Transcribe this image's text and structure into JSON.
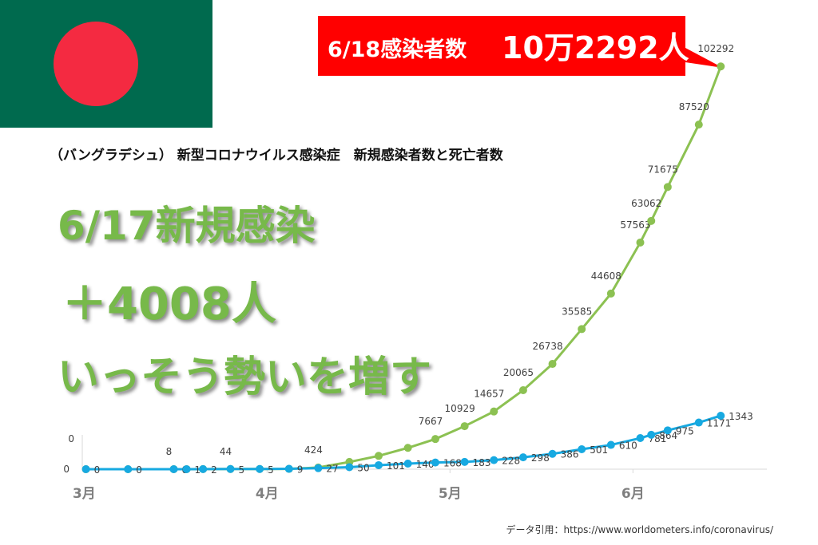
{
  "chart_data": {
    "type": "line",
    "title": "（バングラデシュ） 新型コロナウイルス感染症　新規感染者数と死亡者数",
    "banner": [
      "6/18感染者数",
      "10万2292人"
    ],
    "headline": [
      "6/17新規感染",
      "＋4008人",
      "いっそう勢いを増す"
    ],
    "source": "データ引用：https://www.worldometers.info/coronavirus/",
    "x": [
      3.01,
      3.24,
      3.49,
      3.56,
      3.65,
      3.8,
      3.96,
      4.12,
      4.28,
      4.45,
      4.61,
      4.77,
      4.92,
      5.08,
      5.24,
      5.4,
      5.56,
      5.72,
      5.88,
      6.04,
      6.1,
      6.19,
      6.36,
      6.48
    ],
    "xlim": [
      2.99,
      6.85
    ],
    "xticks": [
      {
        "value": 3,
        "label": "3月"
      },
      {
        "value": 4,
        "label": "4月"
      },
      {
        "value": 5,
        "label": "5月"
      },
      {
        "value": 6,
        "label": "6月"
      }
    ],
    "ylim": [
      0,
      107000
    ],
    "yticks": [
      0
    ],
    "y2lim": [
      0,
      10580
    ],
    "y2ticks": [
      0
    ],
    "series": [
      {
        "name": "感染者数",
        "color": "#8cc152",
        "values": [
          3,
          5,
          8,
          10,
          25,
          44,
          48,
          88,
          424,
          1838,
          3382,
          5416,
          7667,
          10929,
          14657,
          20065,
          26738,
          35585,
          44608,
          57563,
          63062,
          71675,
          87520,
          102292
        ],
        "value_labels": [
          null,
          null,
          "8",
          null,
          null,
          "44",
          null,
          null,
          "424",
          null,
          null,
          null,
          "7667",
          "10929",
          "14657",
          "20065",
          "26738",
          "35585",
          "44608",
          "57563",
          "63062",
          "71675",
          "87520",
          "102292"
        ]
      },
      {
        "name": "死亡者数",
        "color": "#17a9e1",
        "axis": "y2",
        "values": [
          0,
          0,
          0,
          1,
          2,
          5,
          5,
          9,
          27,
          50,
          101,
          140,
          168,
          183,
          228,
          298,
          386,
          501,
          610,
          781,
          864,
          975,
          1171,
          1343
        ]
      }
    ]
  }
}
